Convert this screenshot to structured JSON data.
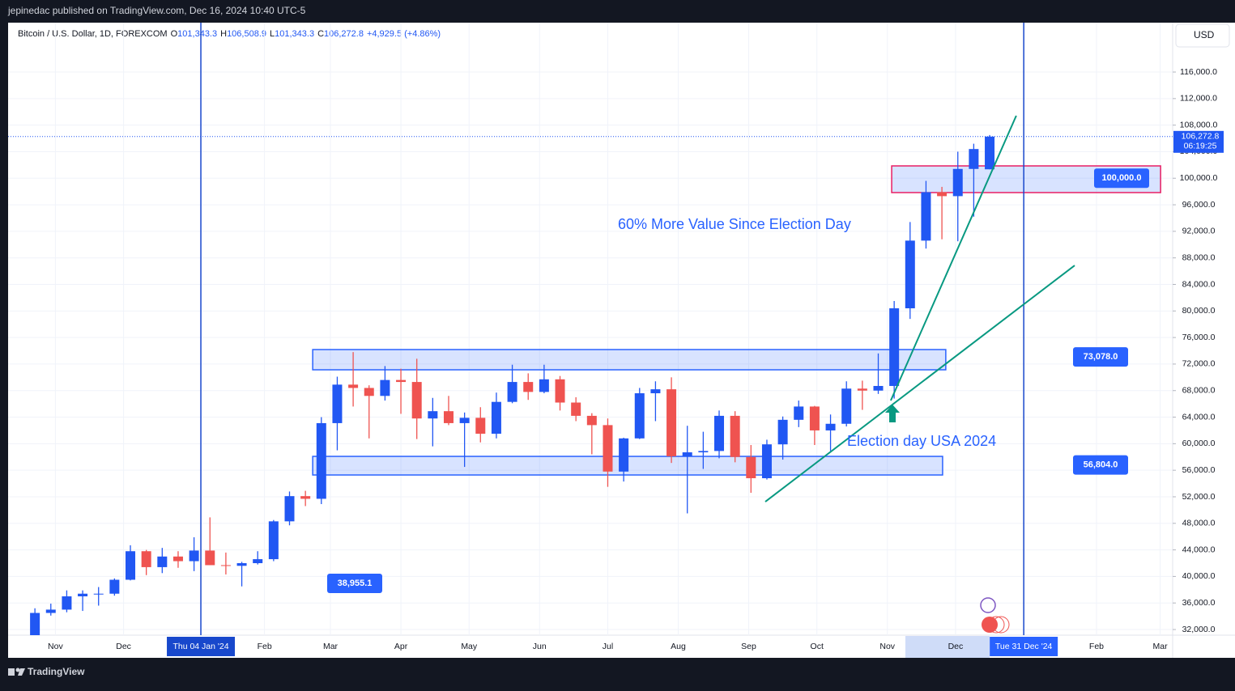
{
  "header": {
    "published": "jepinedac published on TradingView.com, Dec 16, 2024 10:40 UTC-5",
    "symbol": "Bitcoin / U.S. Dollar, 1D, FOREXCOM",
    "ohlc": [
      [
        "O",
        "101,343.3"
      ],
      [
        "H",
        "106,508.9"
      ],
      [
        "L",
        "101,343.3"
      ],
      [
        "C",
        "106,272.8"
      ]
    ],
    "change": "+4,929.5 (+4.86%)",
    "currency": "USD",
    "brand": "TradingView"
  },
  "chart_data": {
    "type": "candlestick",
    "up_color": "#2157f3",
    "down_color": "#ef5350",
    "x": [
      -73,
      -66,
      -59,
      -52,
      -45,
      -38,
      -31,
      -24,
      -17,
      -10,
      -3,
      4,
      11,
      18,
      25,
      32,
      39,
      46,
      53,
      60,
      67,
      74,
      81,
      88,
      95,
      102,
      109,
      116,
      123,
      130,
      137,
      144,
      151,
      158,
      165,
      172,
      179,
      186,
      193,
      200,
      207,
      214,
      221,
      228,
      235,
      242,
      249,
      256,
      263,
      270,
      277,
      284,
      291,
      298,
      305,
      312,
      319,
      326,
      333,
      340,
      347
    ],
    "open": [
      30000,
      34500,
      35000,
      37000,
      37400,
      37400,
      39500,
      43800,
      41400,
      43000,
      42300,
      43900,
      41700,
      41600,
      42000,
      42600,
      48300,
      52100,
      51700,
      63100,
      68900,
      68400,
      67200,
      69600,
      69300,
      63800,
      64900,
      63100,
      63900,
      61500,
      66300,
      69300,
      67800,
      69700,
      66200,
      64200,
      62800,
      55800,
      60800,
      67600,
      68200,
      58100,
      58700,
      58900,
      64200,
      58000,
      54800,
      59900,
      63600,
      65600,
      62000,
      63000,
      68300,
      68000,
      68700,
      80400,
      90600,
      97900,
      97300,
      101400,
      101343.3
    ],
    "high": [
      35200,
      35900,
      37900,
      37900,
      38400,
      39700,
      44700,
      44000,
      44300,
      43800,
      45900,
      48900,
      43600,
      42200,
      43800,
      48500,
      52800,
      52900,
      64000,
      70100,
      73800,
      68800,
      71700,
      71300,
      72800,
      66900,
      67200,
      64700,
      65500,
      67700,
      71900,
      70600,
      71900,
      70200,
      67000,
      64600,
      63800,
      60900,
      68400,
      69400,
      70000,
      62700,
      61800,
      65000,
      64900,
      59800,
      60600,
      64100,
      66500,
      65700,
      64400,
      69400,
      69500,
      73600,
      81500,
      93400,
      99600,
      98700,
      104000,
      105200,
      106508.9
    ],
    "low": [
      29900,
      34100,
      34600,
      34800,
      35600,
      37100,
      39400,
      40200,
      40500,
      41300,
      40800,
      41700,
      40300,
      38500,
      41800,
      42300,
      47700,
      50600,
      50900,
      59000,
      65600,
      60800,
      66500,
      64500,
      60700,
      59600,
      62800,
      56500,
      60200,
      60800,
      66100,
      66600,
      67600,
      65000,
      63400,
      58400,
      53500,
      54300,
      60700,
      63400,
      57100,
      49500,
      56200,
      57800,
      57200,
      52600,
      54600,
      57600,
      62500,
      59800,
      58900,
      62600,
      65100,
      67500,
      66800,
      78800,
      89400,
      90800,
      90500,
      94200,
      101343.3
    ],
    "close": [
      34500,
      35000,
      37000,
      37400,
      37400,
      39500,
      43800,
      41400,
      43000,
      42300,
      43900,
      41700,
      41600,
      42000,
      42600,
      48300,
      52100,
      51700,
      63100,
      68900,
      68400,
      67200,
      69600,
      69300,
      63800,
      64900,
      63100,
      63900,
      61500,
      66300,
      69300,
      67800,
      69700,
      66200,
      64200,
      62800,
      55800,
      60800,
      67600,
      68200,
      58100,
      58700,
      58900,
      64200,
      58000,
      54800,
      59900,
      63600,
      65600,
      62000,
      63000,
      68300,
      68000,
      68700,
      80400,
      90600,
      97900,
      97300,
      101400,
      104400,
      106272.8
    ],
    "xlim": [
      -84.8,
      427.5
    ],
    "xticks": [
      {
        "value": -64,
        "label": "Nov"
      },
      {
        "value": -34,
        "label": "Dec"
      },
      {
        "value": 28,
        "label": "Feb"
      },
      {
        "value": 57,
        "label": "Mar"
      },
      {
        "value": 88,
        "label": "Apr"
      },
      {
        "value": 118,
        "label": "May"
      },
      {
        "value": 149,
        "label": "Jun"
      },
      {
        "value": 179,
        "label": "Jul"
      },
      {
        "value": 210,
        "label": "Aug"
      },
      {
        "value": 241,
        "label": "Sep"
      },
      {
        "value": 271,
        "label": "Oct"
      },
      {
        "value": 302,
        "label": "Nov"
      },
      {
        "value": 332,
        "label": "Dec"
      },
      {
        "value": 394,
        "label": "Feb"
      },
      {
        "value": 422,
        "label": "Mar"
      }
    ],
    "vlines": [
      {
        "value": 0,
        "label": "Thu 04 Jan '24"
      },
      {
        "value": 362,
        "label": "Tue 31 Dec '24"
      }
    ],
    "ylim": [
      31150,
      123440
    ],
    "yticks": [
      {
        "value": 32000,
        "label": "32,000.0"
      },
      {
        "value": 36000,
        "label": "36,000.0"
      },
      {
        "value": 40000,
        "label": "40,000.0"
      },
      {
        "value": 44000,
        "label": "44,000.0"
      },
      {
        "value": 48000,
        "label": "48,000.0"
      },
      {
        "value": 52000,
        "label": "52,000.0"
      },
      {
        "value": 56000,
        "label": "56,000.0"
      },
      {
        "value": 60000,
        "label": "60,000.0"
      },
      {
        "value": 64000,
        "label": "64,000.0"
      },
      {
        "value": 68000,
        "label": "68,000.0"
      },
      {
        "value": 72000,
        "label": "72,000.0"
      },
      {
        "value": 76000,
        "label": "76,000.0"
      },
      {
        "value": 80000,
        "label": "80,000.0"
      },
      {
        "value": 84000,
        "label": "84,000.0"
      },
      {
        "value": 88000,
        "label": "88,000.0"
      },
      {
        "value": 92000,
        "label": "92,000.0"
      },
      {
        "value": 96000,
        "label": "96,000.0"
      },
      {
        "value": 100000,
        "label": "100,000.0"
      },
      {
        "value": 104000,
        "label": "104,000.0"
      },
      {
        "value": 108000,
        "label": "108,000.0"
      },
      {
        "value": 112000,
        "label": "112,000.0"
      },
      {
        "value": 116000,
        "label": "116,000.0"
      }
    ],
    "grid": true,
    "zones": [
      {
        "x": [
          303.9,
          422.2
        ],
        "y": [
          97835,
          101858
        ],
        "color": "#e91e63"
      },
      {
        "x": [
          49.2,
          327.7
        ],
        "y": [
          71135,
          74183
        ],
        "color": "#2962ff"
      },
      {
        "x": [
          49.2,
          326.3
        ],
        "y": [
          55286,
          58090
        ],
        "color": "#2962ff"
      }
    ],
    "trendlines": [
      {
        "x": [
          248.3,
          384.4
        ],
        "y": [
          51262,
          86863
        ]
      },
      {
        "x": [
          303.5,
          358.7
        ],
        "y": [
          66502,
          109416
        ]
      }
    ],
    "price_labels": [
      {
        "value": 100000,
        "label": "100,000.0"
      },
      {
        "value": 73078,
        "label": "73,078.0"
      },
      {
        "value": 56804,
        "label": "56,804.0"
      },
      {
        "value": 38955.1,
        "label": "38,955.1"
      }
    ],
    "last_price": {
      "value": 106272.8,
      "label": "106,272.8",
      "countdown": "06:19:25"
    },
    "annotations": [
      "60% More Value Since Election Day",
      "Election day USA 2024"
    ]
  }
}
